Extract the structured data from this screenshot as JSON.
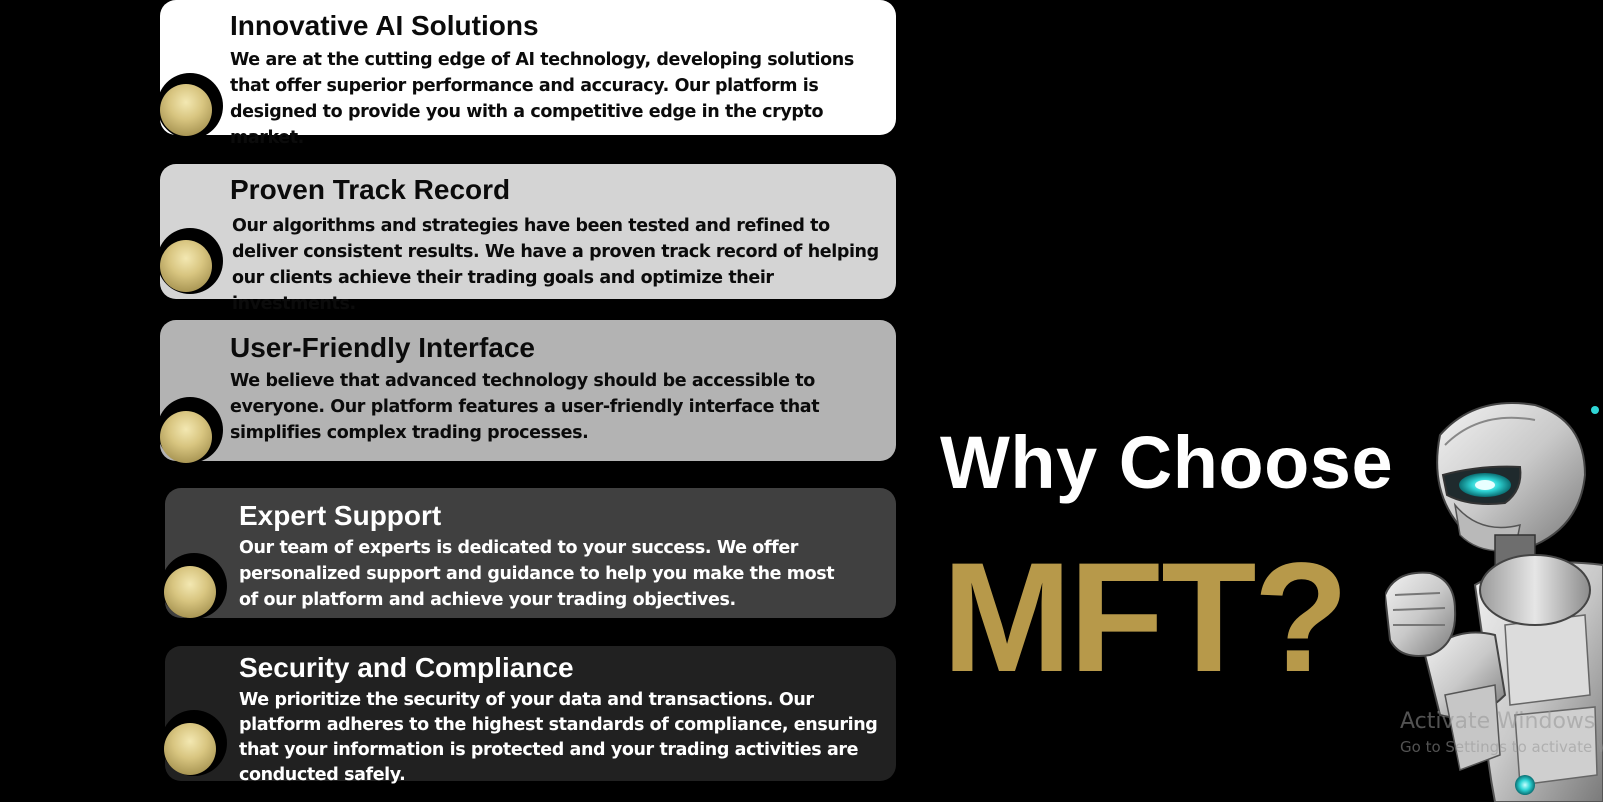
{
  "cards": [
    {
      "title": "Innovative AI Solutions",
      "body": "We are at the cutting edge of AI technology, developing solutions that offer superior performance and accuracy. Our platform is designed to provide you with a competitive edge in the crypto market.",
      "background": "#ffffff"
    },
    {
      "title": "Proven Track Record",
      "body": "Our algorithms and strategies have been tested and refined to deliver consistent results. We have a proven track record of helping our clients achieve their trading goals and optimize their investments.",
      "background": "#d4d4d4"
    },
    {
      "title": "User-Friendly Interface",
      "body": "We believe that advanced technology should be accessible to everyone. Our platform features a user-friendly interface that simplifies complex trading processes.",
      "background": "#b3b3b3"
    },
    {
      "title": "Expert Support",
      "body": "Our team of experts is dedicated to your success. We offer personalized support and guidance to help you make the most of our platform and achieve your trading objectives.",
      "background": "#404040"
    },
    {
      "title": "Security and Compliance",
      "body": "We prioritize the security of your data and transactions. Our platform adheres to the highest standards of compliance, ensuring that your information is protected and your trading activities are conducted safely.",
      "background": "#212121"
    }
  ],
  "hero": {
    "line1": "Why Choose",
    "line2": "MFT?",
    "accent_color": "#b7994a"
  },
  "watermark": {
    "title": "Activate Windows",
    "subtitle": "Go to Settings to activate Windows."
  },
  "icons": {
    "bullet": "gold-coin-icon",
    "mascot": "robot-illustration"
  }
}
